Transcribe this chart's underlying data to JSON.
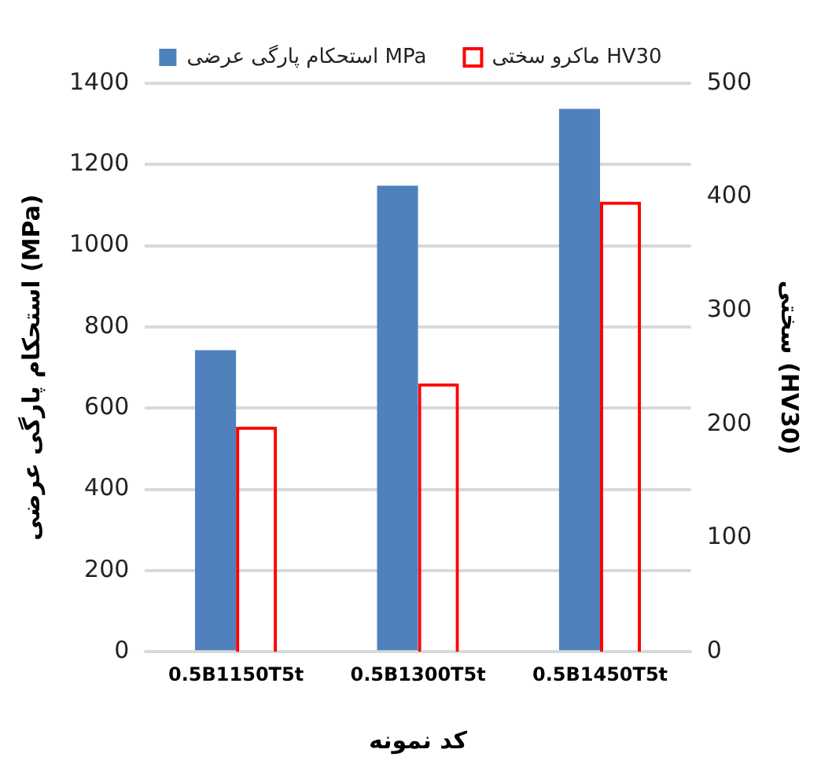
{
  "chart_data": {
    "type": "bar",
    "xlabel": "کد نمونه",
    "ylabel": "استحکام پارگی عرضی (MPa)",
    "y2label": "سختی (HV30)",
    "categories": [
      "0.5B1150T5t",
      "0.5B1300T5t",
      "0.5B1450T5t"
    ],
    "series": [
      {
        "name": "استحکام پارگی عرضی MPa",
        "color": "#4f81bd",
        "values": [
          743,
          1148,
          1337
        ]
      },
      {
        "name": "ماکرو سختی HV30",
        "color": "#ff0000",
        "axis": "y2",
        "values": [
          198,
          236,
          396
        ]
      }
    ],
    "ylim": [
      0,
      1400
    ],
    "yticks": [
      0,
      200,
      400,
      600,
      800,
      1000,
      1200,
      1400
    ],
    "y2lim": [
      0,
      500
    ],
    "y2ticks": [
      0,
      100,
      200,
      300,
      400,
      500
    ],
    "grid": "y",
    "legend": "top"
  }
}
